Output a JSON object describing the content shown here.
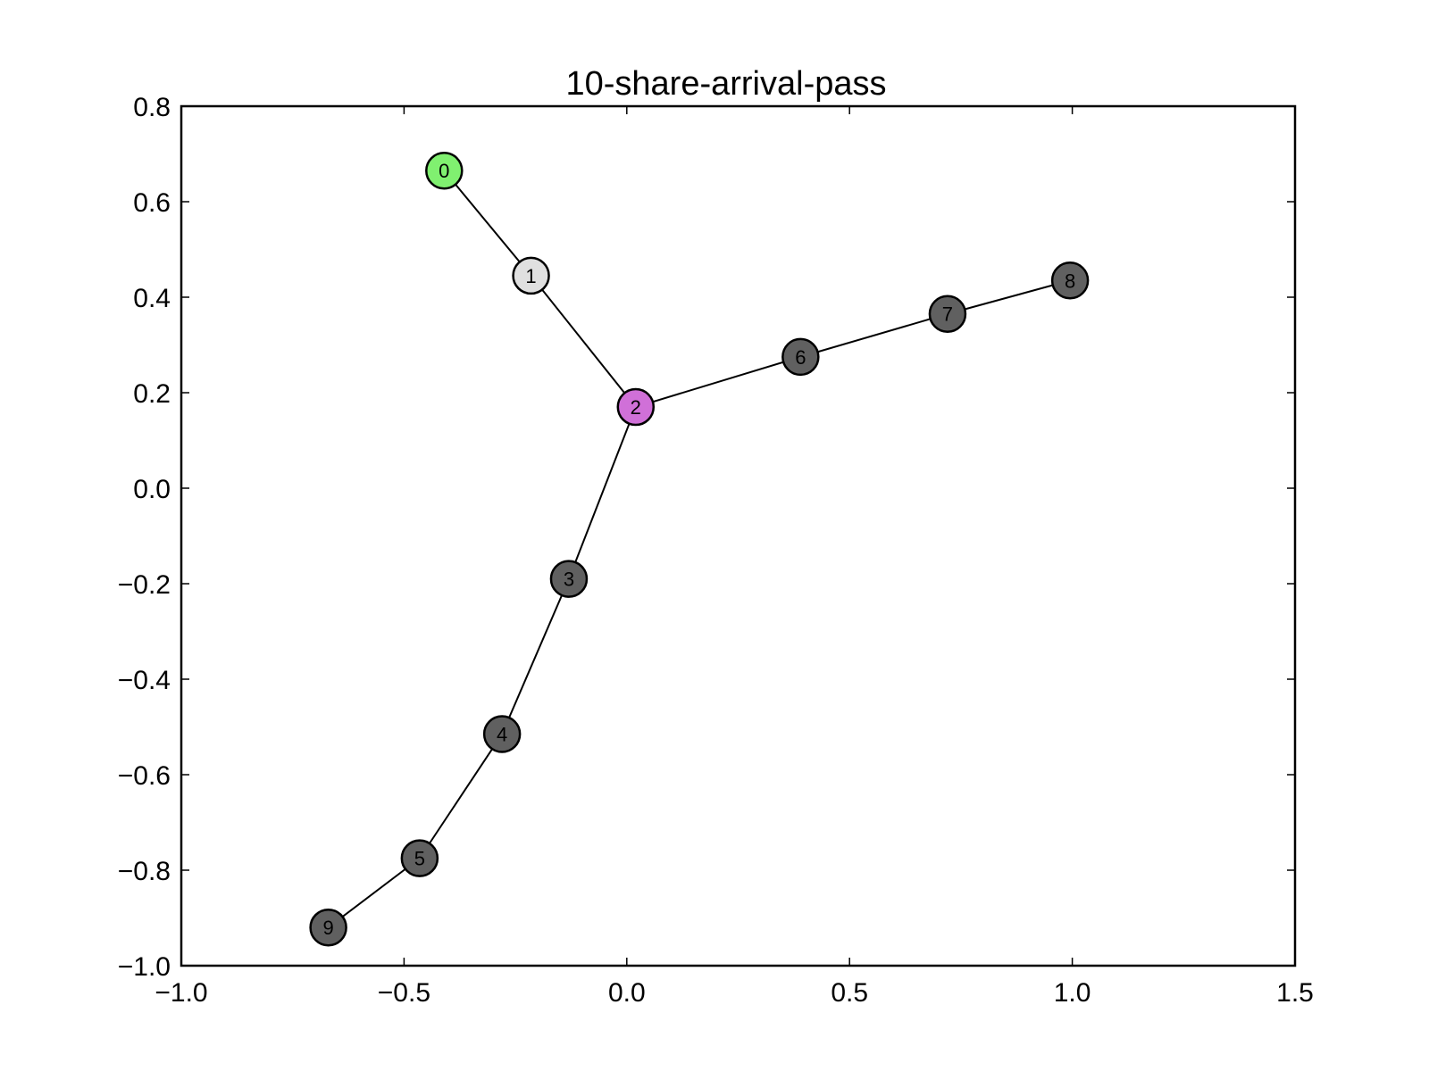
{
  "title": "10-share-arrival-pass",
  "colors": {
    "source": "#80f070",
    "intermediate": "#e0e0e0",
    "hub": "#d070d8",
    "default": "#606060"
  },
  "axes": {
    "xlim": [
      -1.0,
      1.5
    ],
    "ylim": [
      -1.0,
      0.8
    ],
    "xticks": [
      -1.0,
      -0.5,
      0.0,
      0.5,
      1.0,
      1.5
    ],
    "yticks": [
      -1.0,
      -0.8,
      -0.6,
      -0.4,
      -0.2,
      0.0,
      0.2,
      0.4,
      0.6,
      0.8
    ],
    "xtick_labels": [
      "−1.0",
      "−0.5",
      "0.0",
      "0.5",
      "1.0",
      "1.5"
    ],
    "ytick_labels": [
      "−1.0",
      "−0.8",
      "−0.6",
      "−0.4",
      "−0.2",
      "0.0",
      "0.2",
      "0.4",
      "0.6",
      "0.8"
    ]
  },
  "chart_data": {
    "type": "scatter",
    "title": "10-share-arrival-pass",
    "xlim": [
      -1.0,
      1.5
    ],
    "ylim": [
      -1.0,
      0.8
    ],
    "grid": false,
    "nodes": [
      {
        "id": "0",
        "x": -0.41,
        "y": 0.665,
        "color": "#80f070"
      },
      {
        "id": "1",
        "x": -0.215,
        "y": 0.445,
        "color": "#e0e0e0"
      },
      {
        "id": "2",
        "x": 0.02,
        "y": 0.17,
        "color": "#d070d8"
      },
      {
        "id": "3",
        "x": -0.13,
        "y": -0.19,
        "color": "#606060"
      },
      {
        "id": "4",
        "x": -0.28,
        "y": -0.515,
        "color": "#606060"
      },
      {
        "id": "5",
        "x": -0.465,
        "y": -0.775,
        "color": "#606060"
      },
      {
        "id": "6",
        "x": 0.39,
        "y": 0.275,
        "color": "#606060"
      },
      {
        "id": "7",
        "x": 0.72,
        "y": 0.365,
        "color": "#606060"
      },
      {
        "id": "8",
        "x": 0.995,
        "y": 0.435,
        "color": "#606060"
      },
      {
        "id": "9",
        "x": -0.67,
        "y": -0.92,
        "color": "#606060"
      }
    ],
    "edges": [
      [
        "0",
        "1"
      ],
      [
        "1",
        "2"
      ],
      [
        "2",
        "3"
      ],
      [
        "3",
        "4"
      ],
      [
        "4",
        "5"
      ],
      [
        "5",
        "9"
      ],
      [
        "2",
        "6"
      ],
      [
        "6",
        "7"
      ],
      [
        "7",
        "8"
      ]
    ]
  }
}
